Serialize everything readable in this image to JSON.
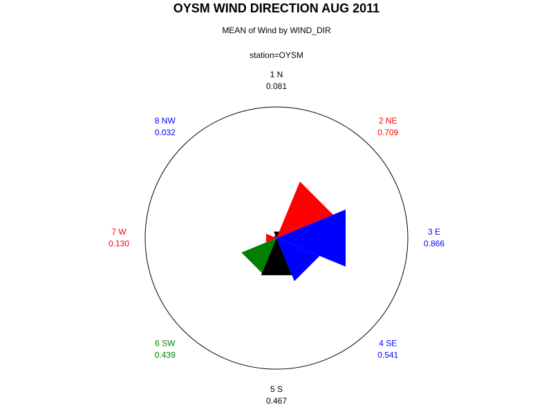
{
  "chart_data": {
    "type": "star",
    "title": "OYSM WIND DIRECTION AUG 2011",
    "subtitle": "MEAN of Wind by WIND_DIR",
    "group_label": "station=OYSM",
    "categories": [
      "1 N",
      "2 NE",
      "3 E",
      "4 SE",
      "5 S",
      "6 SW",
      "7 W",
      "8 NW"
    ],
    "values": [
      0.081,
      0.709,
      0.866,
      0.541,
      0.467,
      0.439,
      0.13,
      0.032
    ],
    "value_labels": [
      "0.081",
      "0.709",
      "0.866",
      "0.541",
      "0.467",
      "0.439",
      "0.130",
      "0.032"
    ],
    "colors": [
      "#000000",
      "#ff0000",
      "#0000ff",
      "#0000ff",
      "#000000",
      "#008000",
      "#ff0000",
      "#0000ff"
    ],
    "label_colors": [
      "#000000",
      "#ff0000",
      "#0000ff",
      "#0000ff",
      "#000000",
      "#008000",
      "#ff0000",
      "#0000ff"
    ],
    "ylim": [
      0,
      1.52
    ]
  }
}
